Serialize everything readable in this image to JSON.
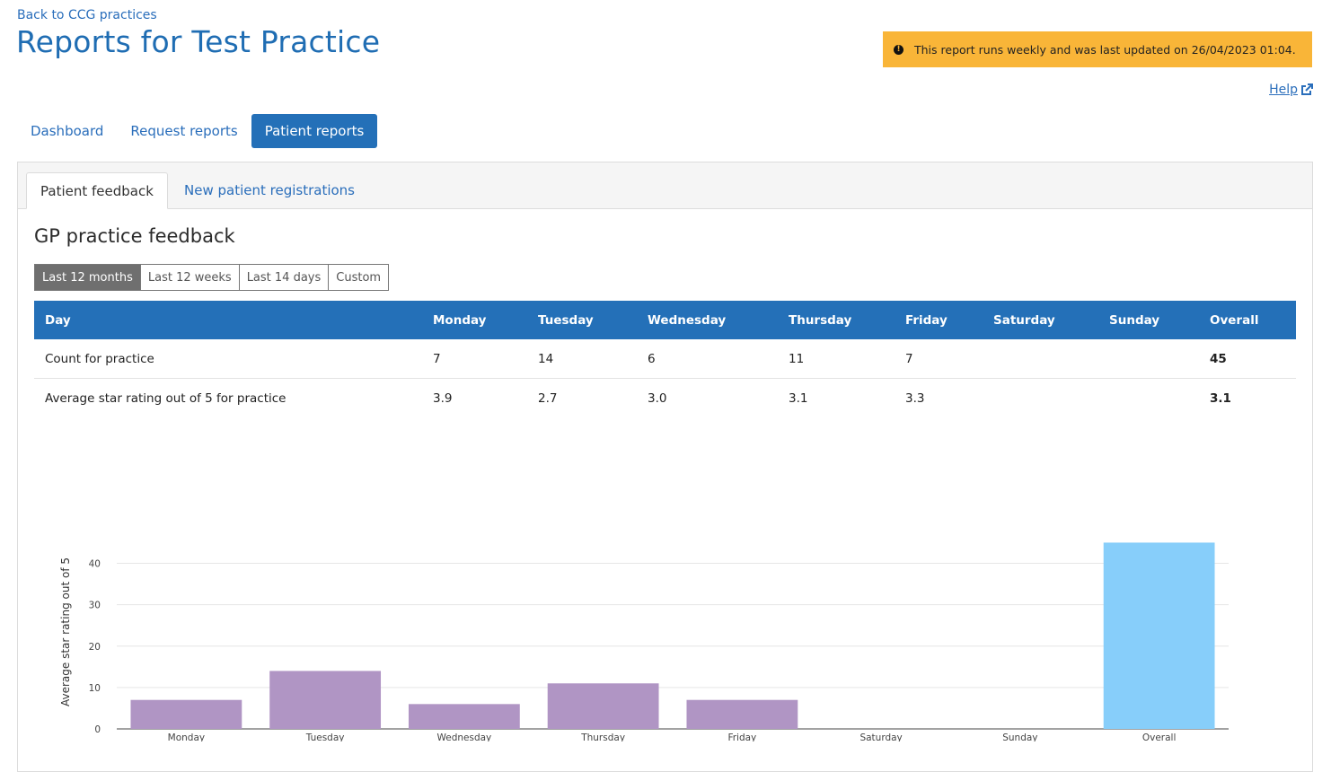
{
  "nav": {
    "back_link": "Back to CCG practices"
  },
  "page": {
    "title": "Reports for Test Practice"
  },
  "notice": {
    "text": "This report runs weekly and was last updated on 26/04/2023 01:04.",
    "icon": "exclamation-circle-icon",
    "color": "#f9b538"
  },
  "help": {
    "label": "Help",
    "icon": "external-link-icon"
  },
  "main_tabs": [
    {
      "label": "Dashboard"
    },
    {
      "label": "Request reports"
    },
    {
      "label": "Patient reports",
      "active": true
    }
  ],
  "sub_tabs": [
    {
      "label": "Patient feedback",
      "active": true
    },
    {
      "label": "New patient registrations"
    }
  ],
  "section": {
    "title": "GP practice feedback"
  },
  "date_ranges": [
    {
      "label": "Last 12 months",
      "active": true
    },
    {
      "label": "Last 12 weeks"
    },
    {
      "label": "Last 14 days"
    },
    {
      "label": "Custom"
    }
  ],
  "table": {
    "headers": [
      "Day",
      "Monday",
      "Tuesday",
      "Wednesday",
      "Thursday",
      "Friday",
      "Saturday",
      "Sunday",
      "Overall"
    ],
    "rows": [
      [
        "Count for practice",
        "7",
        "14",
        "6",
        "11",
        "7",
        "",
        "",
        "45"
      ],
      [
        "Average star rating out of 5 for practice",
        "3.9",
        "2.7",
        "3.0",
        "3.1",
        "3.3",
        "",
        "",
        "3.1"
      ]
    ]
  },
  "colors": {
    "primary": "#2470b8",
    "bar_day": "#b095c4",
    "bar_overall": "#87cefa"
  },
  "chart_data": {
    "type": "bar",
    "categories": [
      "Monday",
      "Tuesday",
      "Wednesday",
      "Thursday",
      "Friday",
      "Saturday",
      "Sunday",
      "Overall"
    ],
    "values": [
      7,
      14,
      6,
      11,
      7,
      0,
      0,
      45
    ],
    "ylabel": "Average star rating out of 5",
    "ylim": [
      0,
      49
    ],
    "yticks": [
      0,
      10,
      20,
      30,
      40
    ],
    "grid": true
  }
}
